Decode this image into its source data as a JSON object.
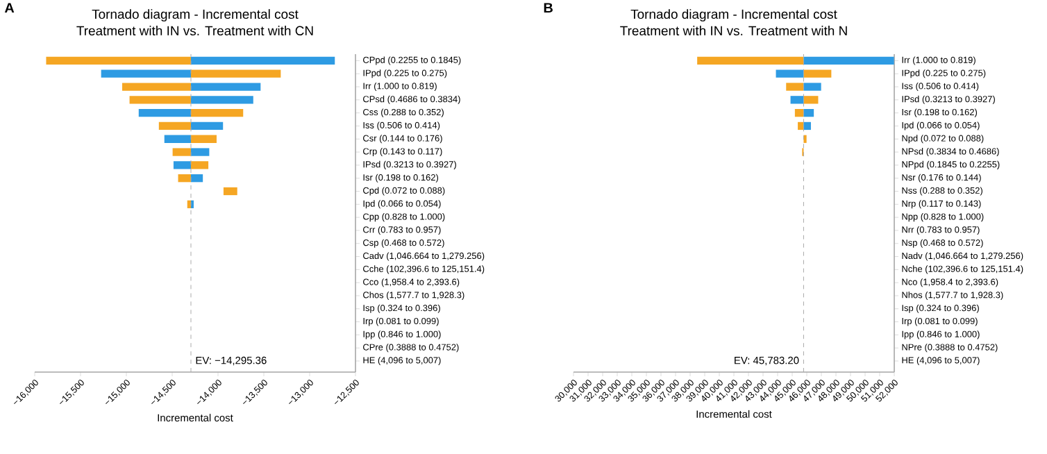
{
  "chart_data": [
    {
      "type": "bar",
      "orientation": "horizontal",
      "title": "Tornado diagram - Incremental cost",
      "subtitle": "Treatment with IN vs. Treatment with CN",
      "xlabel": "Incremental cost",
      "annotations": [
        "A"
      ],
      "categories": [
        "CPpd (0.2255 to 0.1845)",
        "IPpd (0.225 to 0.275)",
        "Irr (1.000 to 0.819)",
        "CPsd (0.4686 to 0.3834)",
        "Css (0.288 to 0.352)",
        "Iss (0.506 to 0.414)",
        "Csr (0.144 to 0.176)",
        "Crp (0.143 to 0.117)",
        "IPsd (0.3213 to 0.3927)",
        "Isr (0.198 to 0.162)",
        "Cpd (0.072 to 0.088)",
        "Ipd (0.066 to 0.054)",
        "Cpp (0.828 to 1.000)",
        "Crr (0.783 to 0.957)",
        "Csp (0.468 to 0.572)",
        "Cadv (1,046.664 to 1,279.256)",
        "Cche (102,396.6 to 125,151.4)",
        "Cco (1,958.4 to 2,393.6)",
        "Chos (1,577.7 to 1,928.3)",
        "Isp (0.324 to 0.396)",
        "Irp (0.081 to 0.099)",
        "Ipp (0.846 to 1.000)",
        "CPre (0.3888 to 0.4752)",
        "HE (4,096 to 5,007)"
      ],
      "series": [
        {
          "color": "#f5a623",
          "values": [
            -1580,
            980,
            -750,
            -670,
            570,
            -350,
            280,
            -200,
            190,
            -140,
            150,
            -40,
            null,
            null,
            null,
            null,
            null,
            null,
            null,
            null,
            null,
            null,
            null,
            null
          ],
          "base": [
            -14295.36,
            -14295.36,
            -14295.36,
            -14295.36,
            -14295.36,
            -14295.36,
            -14295.36,
            -14295.36,
            -14295.36,
            -14295.36,
            -13940,
            -14295.36,
            null,
            null,
            null,
            null,
            null,
            null,
            null,
            null,
            null,
            null,
            null,
            null
          ]
        },
        {
          "color": "#2e9be3",
          "values": [
            1570,
            -980,
            760,
            680,
            -570,
            350,
            -290,
            200,
            -190,
            130,
            null,
            30,
            null,
            null,
            null,
            null,
            null,
            null,
            null,
            null,
            null,
            null,
            null,
            null
          ],
          "base": [
            -14295.36,
            -14295.36,
            -14295.36,
            -14295.36,
            -14295.36,
            -14295.36,
            -14295.36,
            -14295.36,
            -14295.36,
            -14295.36,
            null,
            -14295.36,
            null,
            null,
            null,
            null,
            null,
            null,
            null,
            null,
            null,
            null,
            null,
            null
          ]
        }
      ],
      "xlim": [
        -16000,
        -12500
      ],
      "xticks": [
        {
          "value": -16000,
          "label": "−16,000"
        },
        {
          "value": -15500,
          "label": "−15,500"
        },
        {
          "value": -15000,
          "label": "−15,000"
        },
        {
          "value": -14500,
          "label": "−14,500"
        },
        {
          "value": -14000,
          "label": "−14,000"
        },
        {
          "value": -13500,
          "label": "−13,500"
        },
        {
          "value": -13000,
          "label": "−13,000"
        },
        {
          "value": -12500,
          "label": "−12,500"
        }
      ],
      "ref_lines": [
        {
          "axis": "x",
          "value": -14295.36,
          "label": "EV: −14,295.36",
          "color": "#aaaaaa",
          "line_style": "dashed"
        }
      ]
    },
    {
      "type": "bar",
      "orientation": "horizontal",
      "title": "Tornado diagram - Incremental cost",
      "subtitle": "Treatment with IN vs. Treatment with N",
      "xlabel": "Incremental cost",
      "annotations": [
        "B"
      ],
      "categories": [
        "Irr (1.000 to 0.819)",
        "IPpd (0.225 to 0.275)",
        "Iss (0.506 to 0.414)",
        "IPsd (0.3213 to 0.3927)",
        "Isr (0.198 to 0.162)",
        "Ipd (0.066 to 0.054)",
        "Npd (0.072 to 0.088)",
        "NPsd (0.3834 to 0.4686)",
        "NPpd (0.1845 to 0.2255)",
        "Nsr (0.176 to 0.144)",
        "Nss (0.288 to 0.352)",
        "Nrp (0.117 to 0.143)",
        "Npp (0.828 to 1.000)",
        "Nrr (0.783 to 0.957)",
        "Nsp (0.468 to 0.572)",
        "Nadv (1,046.664 to 1,279.256)",
        "Nche (102,396.6 to 125,151.4)",
        "Nco (1,958.4 to 2,393.6)",
        "Nhos (1,577.7 to 1,928.3)",
        "Isp (0.324 to 0.396)",
        "Irp (0.081 to 0.099)",
        "Ipp (0.846 to 1.000)",
        "NPre (0.3888 to 0.4752)",
        "HE (4,096 to 5,007)"
      ],
      "series": [
        {
          "color": "#f5a623",
          "values": [
            -7300,
            1900,
            -1200,
            1000,
            -600,
            -400,
            200,
            -100,
            null,
            null,
            null,
            null,
            null,
            null,
            null,
            null,
            null,
            null,
            null,
            null,
            null,
            null,
            null,
            null
          ],
          "base": [
            45783.2,
            45783.2,
            45783.2,
            45783.2,
            45783.2,
            45783.2,
            45783.2,
            45783.2,
            null,
            null,
            null,
            null,
            null,
            null,
            null,
            null,
            null,
            null,
            null,
            null,
            null,
            null,
            null,
            null
          ]
        },
        {
          "color": "#2e9be3",
          "values": [
            6200,
            -1900,
            1200,
            -900,
            700,
            500,
            null,
            null,
            null,
            null,
            null,
            null,
            null,
            null,
            null,
            null,
            null,
            null,
            null,
            null,
            null,
            null,
            null,
            null
          ],
          "base": [
            45783.2,
            45783.2,
            45783.2,
            45783.2,
            45783.2,
            45783.2,
            null,
            null,
            null,
            null,
            null,
            null,
            null,
            null,
            null,
            null,
            null,
            null,
            null,
            null,
            null,
            null,
            null,
            null
          ]
        }
      ],
      "xlim": [
        30000,
        52000
      ],
      "xticks": [
        {
          "value": 30000,
          "label": "30,000"
        },
        {
          "value": 31000,
          "label": "31,000"
        },
        {
          "value": 32000,
          "label": "32,000"
        },
        {
          "value": 33000,
          "label": "33,000"
        },
        {
          "value": 34000,
          "label": "34,000"
        },
        {
          "value": 35000,
          "label": "35,000"
        },
        {
          "value": 36000,
          "label": "36,000"
        },
        {
          "value": 37000,
          "label": "37,000"
        },
        {
          "value": 38000,
          "label": "38,000"
        },
        {
          "value": 39000,
          "label": "39,000"
        },
        {
          "value": 40000,
          "label": "40,000"
        },
        {
          "value": 41000,
          "label": "41,000"
        },
        {
          "value": 42000,
          "label": "42,000"
        },
        {
          "value": 43000,
          "label": "43,000"
        },
        {
          "value": 44000,
          "label": "44,000"
        },
        {
          "value": 45000,
          "label": "45,000"
        },
        {
          "value": 46000,
          "label": "46,000"
        },
        {
          "value": 47000,
          "label": "47,000"
        },
        {
          "value": 48000,
          "label": "48,000"
        },
        {
          "value": 49000,
          "label": "49,000"
        },
        {
          "value": 50000,
          "label": "50,000"
        },
        {
          "value": 51000,
          "label": "51,000"
        },
        {
          "value": 52000,
          "label": "52,000"
        }
      ],
      "ref_lines": [
        {
          "axis": "x",
          "value": 45783.2,
          "label": "EV: 45,783.20",
          "color": "#aaaaaa",
          "line_style": "dashed"
        }
      ]
    }
  ]
}
